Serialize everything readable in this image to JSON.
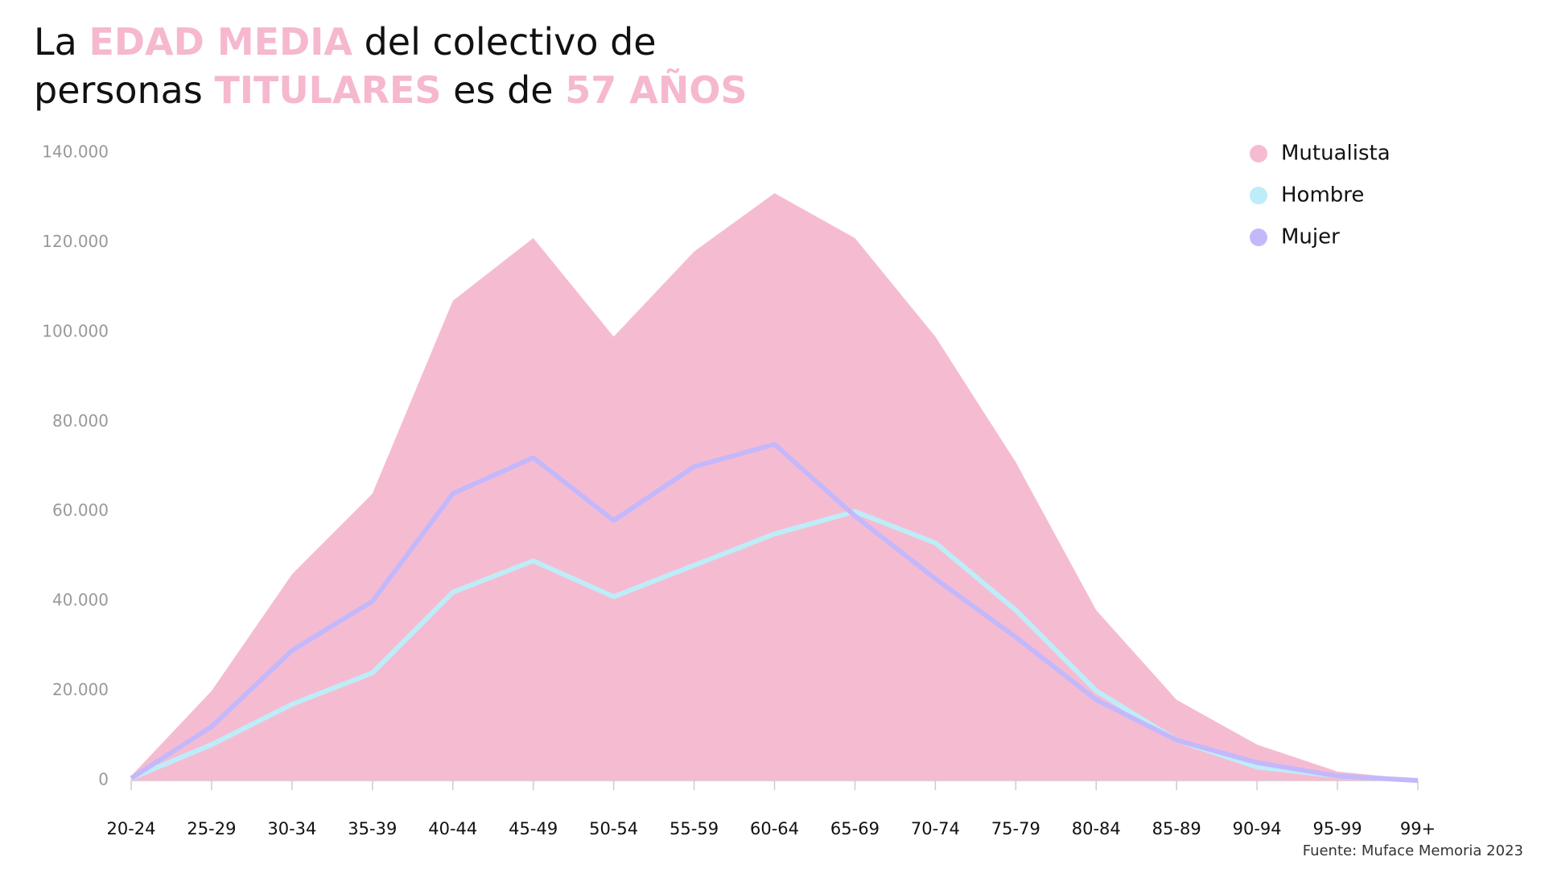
{
  "chart_data": {
    "type": "line",
    "title_lines": [
      [
        {
          "text": "La "
        },
        {
          "text": "EDAD MEDIA",
          "highlight": true
        },
        {
          "text": " del colectivo de"
        }
      ],
      [
        {
          "text": "personas "
        },
        {
          "text": "TITULARES",
          "highlight": true
        },
        {
          "text": " es de "
        },
        {
          "text": "57 AÑOS",
          "highlight": true
        }
      ]
    ],
    "highlight_color": "#f5b8cf",
    "categories": [
      "20-24",
      "25-29",
      "30-34",
      "35-39",
      "40-44",
      "45-49",
      "50-54",
      "55-59",
      "60-64",
      "65-69",
      "70-74",
      "75-79",
      "80-84",
      "85-89",
      "90-94",
      "95-99",
      "99+"
    ],
    "series": [
      {
        "name": "Mutualista",
        "type": "area",
        "color": "#f5bcd1",
        "values": [
          1000,
          20000,
          46000,
          64000,
          107000,
          121000,
          99000,
          118000,
          131000,
          121000,
          99000,
          71000,
          38000,
          18000,
          8000,
          2000,
          200
        ]
      },
      {
        "name": "Hombre",
        "type": "line",
        "color": "#bdedf8",
        "values": [
          500,
          8000,
          17000,
          24000,
          42000,
          49000,
          41000,
          48000,
          55000,
          60000,
          53000,
          38000,
          20000,
          9000,
          3000,
          1000,
          0
        ]
      },
      {
        "name": "Mujer",
        "type": "line",
        "color": "#c4b8fb",
        "values": [
          500,
          12000,
          29000,
          40000,
          64000,
          72000,
          58000,
          70000,
          75000,
          59000,
          45000,
          32000,
          18000,
          9000,
          4000,
          1000,
          0
        ]
      }
    ],
    "ylim": [
      0,
      140000
    ],
    "yticks": [
      0,
      {
        "value": 20000,
        "label": "20.000"
      },
      {
        "value": 40000,
        "label": "40.000"
      },
      {
        "value": 60000,
        "label": "60.000"
      },
      {
        "value": 80000,
        "label": "80.000"
      },
      {
        "value": 100000,
        "label": "100.000"
      },
      {
        "value": 120000,
        "label": "120.000"
      },
      {
        "value": 140000,
        "label": "140.000"
      }
    ],
    "legend": "top-right",
    "source": "Fuente: Muface Memoria 2023"
  }
}
